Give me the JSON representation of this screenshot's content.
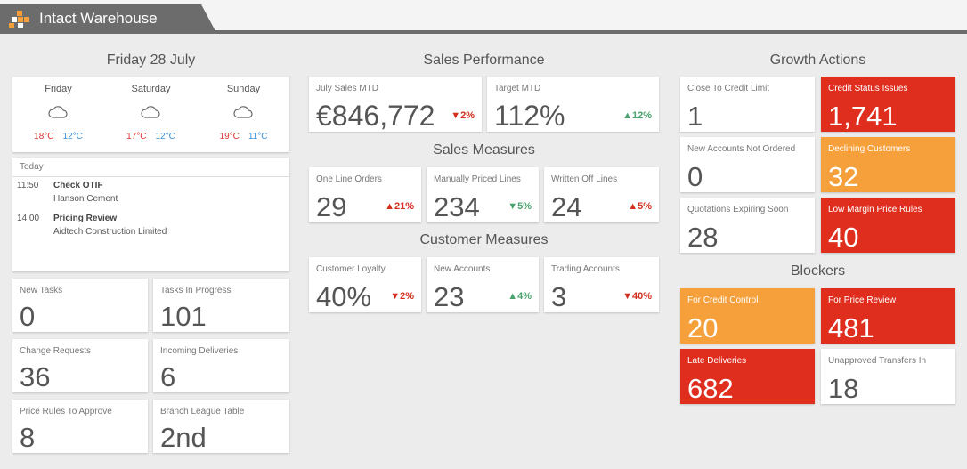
{
  "app": {
    "title": "Intact Warehouse"
  },
  "left": {
    "date_heading": "Friday 28 July",
    "weather": [
      {
        "day": "Friday",
        "icon": "cloud-icon",
        "high": "18°C",
        "low": "12°C"
      },
      {
        "day": "Saturday",
        "icon": "cloud-icon",
        "high": "17°C",
        "low": "12°C"
      },
      {
        "day": "Sunday",
        "icon": "cloud-icon",
        "high": "19°C",
        "low": "11°C"
      }
    ],
    "agenda": {
      "heading": "Today",
      "events": [
        {
          "time": "11:50",
          "title": "Check OTIF",
          "subtitle": "Hanson Cement"
        },
        {
          "time": "14:00",
          "title": "Pricing Review",
          "subtitle": "Aidtech Construction Limited"
        }
      ]
    },
    "tiles": [
      {
        "label": "New Tasks",
        "value": "0"
      },
      {
        "label": "Tasks In Progress",
        "value": "101"
      },
      {
        "label": "Change Requests",
        "value": "36"
      },
      {
        "label": "Incoming Deliveries",
        "value": "6"
      },
      {
        "label": "Price Rules To Approve",
        "value": "8"
      },
      {
        "label": "Branch League Table",
        "value": "2nd"
      }
    ]
  },
  "middle": {
    "sales_performance": {
      "heading": "Sales Performance",
      "tiles": [
        {
          "label": "July Sales MTD",
          "value": "€846,772",
          "change": "▼2%",
          "trend": "down-red"
        },
        {
          "label": "Target MTD",
          "value": "112%",
          "change": "▲12%",
          "trend": "up-green"
        }
      ]
    },
    "sales_measures": {
      "heading": "Sales Measures",
      "tiles": [
        {
          "label": "One Line Orders",
          "value": "29",
          "change": "▲21%",
          "trend": "up-red"
        },
        {
          "label": "Manually Priced Lines",
          "value": "234",
          "change": "▼5%",
          "trend": "down-green"
        },
        {
          "label": "Written Off Lines",
          "value": "24",
          "change": "▲5%",
          "trend": "up-red"
        }
      ]
    },
    "customer_measures": {
      "heading": "Customer Measures",
      "tiles": [
        {
          "label": "Customer Loyalty",
          "value": "40%",
          "change": "▼2%",
          "trend": "down-red"
        },
        {
          "label": "New Accounts",
          "value": "23",
          "change": "▲4%",
          "trend": "up-green"
        },
        {
          "label": "Trading Accounts",
          "value": "3",
          "change": "▼40%",
          "trend": "down-red"
        }
      ]
    }
  },
  "right": {
    "growth_actions": {
      "heading": "Growth Actions",
      "tiles": [
        {
          "label": "Close To Credit Limit",
          "value": "1",
          "style": "white"
        },
        {
          "label": "Credit Status Issues",
          "value": "1,741",
          "style": "red"
        },
        {
          "label": "New Accounts Not Ordered",
          "value": "0",
          "style": "white"
        },
        {
          "label": "Declining Customers",
          "value": "32",
          "style": "orange"
        },
        {
          "label": "Quotations Expiring Soon",
          "value": "28",
          "style": "white"
        },
        {
          "label": "Low Margin Price Rules",
          "value": "40",
          "style": "red"
        }
      ]
    },
    "blockers": {
      "heading": "Blockers",
      "tiles": [
        {
          "label": "For Credit Control",
          "value": "20",
          "style": "orange"
        },
        {
          "label": "For Price Review",
          "value": "481",
          "style": "red"
        },
        {
          "label": "Late Deliveries",
          "value": "682",
          "style": "red"
        },
        {
          "label": "Unapproved Transfers In",
          "value": "18",
          "style": "white"
        }
      ]
    }
  },
  "colors": {
    "red": "#df2d1e",
    "orange": "#f6a03b",
    "header": "#6c6c6c"
  }
}
